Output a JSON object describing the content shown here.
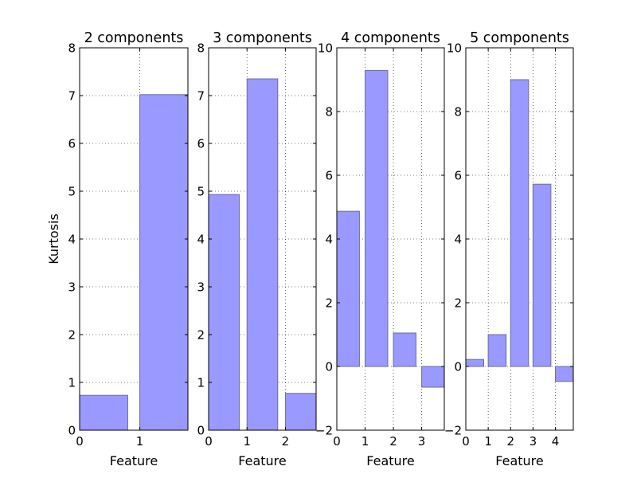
{
  "colors": {
    "bar_fill": "#9999ff",
    "bar_edge": "#6d6d9a",
    "axes": "#000000",
    "grid": "#000000",
    "background": "#ffffff"
  },
  "chart_data": [
    {
      "type": "bar",
      "title": "2 components",
      "xlabel": "Feature",
      "ylabel": "Kurtosis",
      "categories": [
        "0",
        "1"
      ],
      "values": [
        0.73,
        7.02
      ],
      "xlim": [
        0,
        1.8
      ],
      "ylim": [
        0,
        8
      ],
      "xticks": [
        "0",
        "1"
      ],
      "yticks": [
        "0",
        "1",
        "2",
        "3",
        "4",
        "5",
        "6",
        "7",
        "8"
      ],
      "grid": true
    },
    {
      "type": "bar",
      "title": "3 components",
      "xlabel": "Feature",
      "ylabel": "",
      "categories": [
        "0",
        "1",
        "2"
      ],
      "values": [
        4.93,
        7.35,
        0.77
      ],
      "xlim": [
        0,
        2.8
      ],
      "ylim": [
        0,
        8
      ],
      "xticks": [
        "0",
        "1",
        "2"
      ],
      "yticks": [
        "0",
        "1",
        "2",
        "3",
        "4",
        "5",
        "6",
        "7",
        "8"
      ],
      "grid": true
    },
    {
      "type": "bar",
      "title": "4 components",
      "xlabel": "Feature",
      "ylabel": "",
      "categories": [
        "0",
        "1",
        "2",
        "3"
      ],
      "values": [
        4.87,
        9.29,
        1.05,
        -0.65
      ],
      "xlim": [
        0,
        3.8
      ],
      "ylim": [
        -2,
        10
      ],
      "xticks": [
        "0",
        "1",
        "2",
        "3"
      ],
      "yticks": [
        "−2",
        "0",
        "2",
        "4",
        "6",
        "8",
        "10"
      ],
      "grid": true
    },
    {
      "type": "bar",
      "title": "5 components",
      "xlabel": "Feature",
      "ylabel": "",
      "categories": [
        "0",
        "1",
        "2",
        "3",
        "4"
      ],
      "values": [
        0.22,
        1.0,
        9.0,
        5.72,
        -0.47
      ],
      "xlim": [
        0,
        4.8
      ],
      "ylim": [
        -2,
        10
      ],
      "xticks": [
        "0",
        "1",
        "2",
        "3",
        "4"
      ],
      "yticks": [
        "−2",
        "0",
        "2",
        "4",
        "6",
        "8",
        "10"
      ],
      "grid": true
    }
  ]
}
